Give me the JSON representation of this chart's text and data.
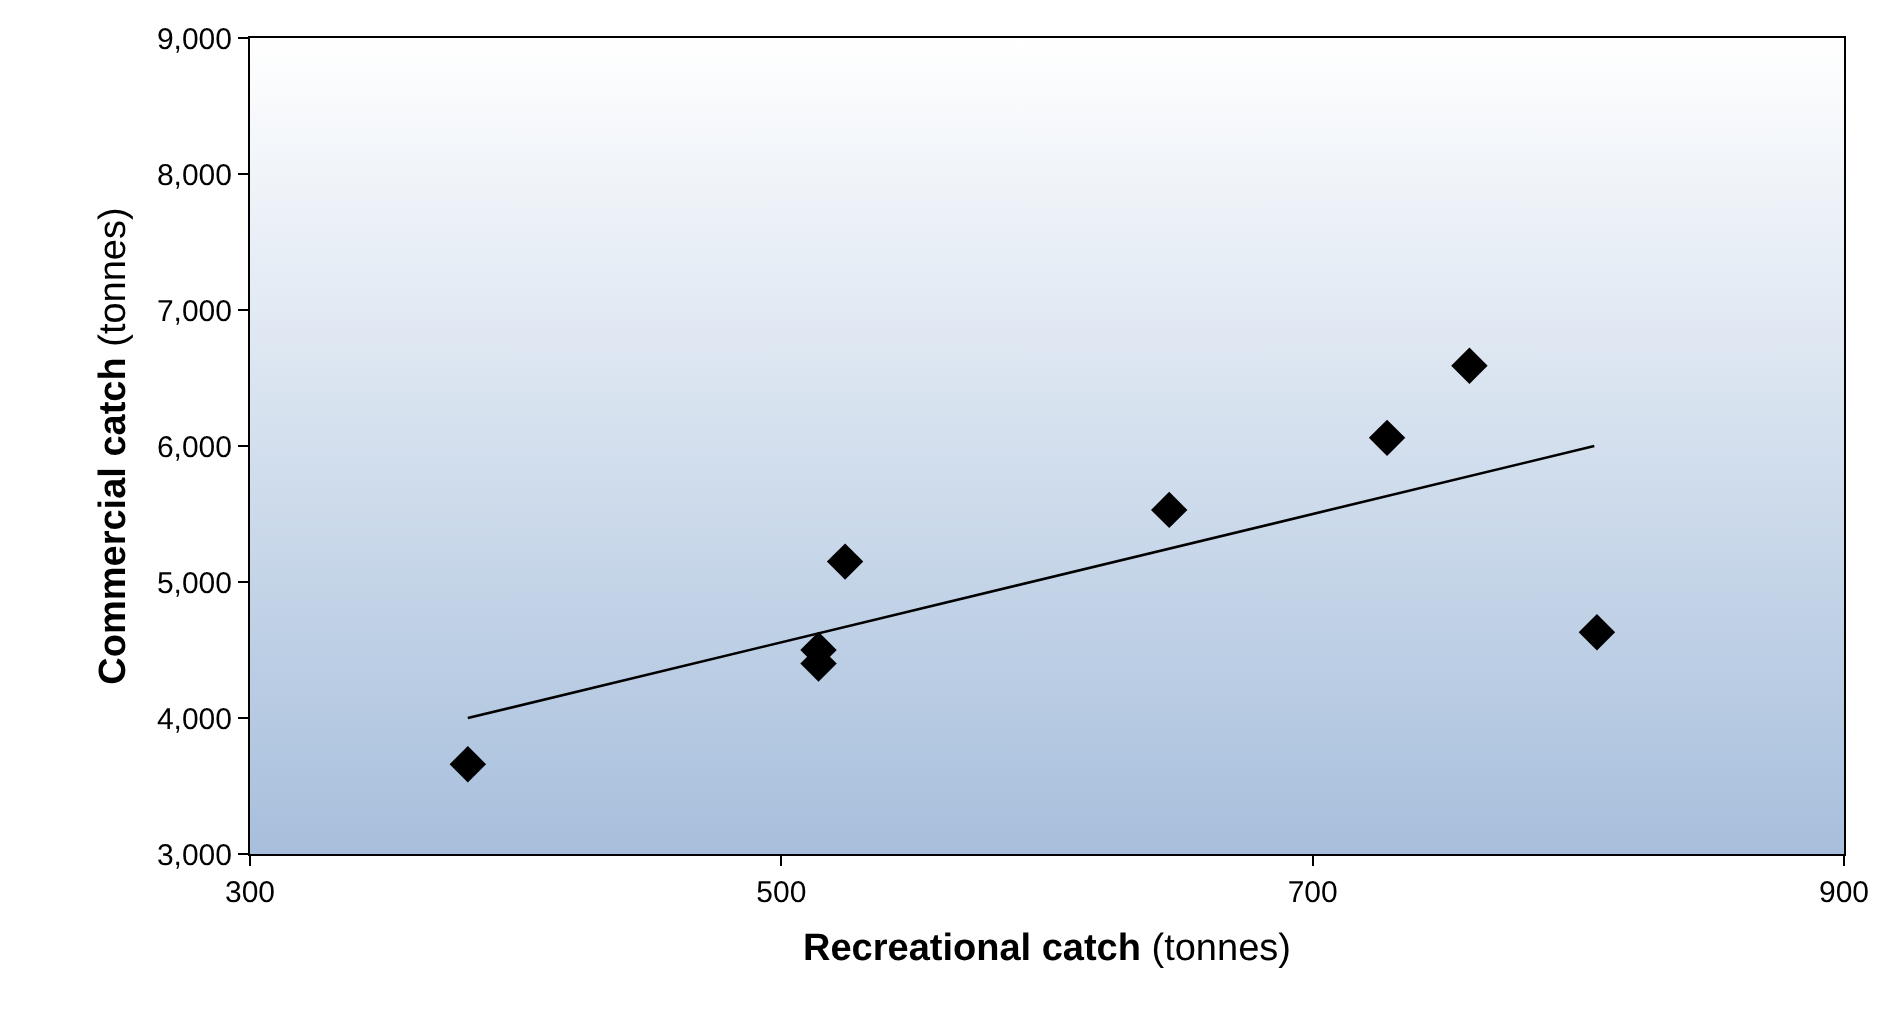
{
  "chart_data": {
    "type": "scatter",
    "xlabel": "Recreational catch (tonnes)",
    "ylabel": "Commercial catch (tonnes)",
    "xlim": [
      300,
      900
    ],
    "xticks": [
      300,
      500,
      700,
      900
    ],
    "ylim": [
      3000,
      9000
    ],
    "yticks": [
      {
        "value": 3000,
        "label": "3,000"
      },
      {
        "value": 4000,
        "label": "4,000"
      },
      {
        "value": 5000,
        "label": "5,000"
      },
      {
        "value": 6000,
        "label": "6,000"
      },
      {
        "value": 7000,
        "label": "7,000"
      },
      {
        "value": 8000,
        "label": "8,000"
      },
      {
        "value": 9000,
        "label": "9,000"
      }
    ],
    "grid": false,
    "marker": "diamond",
    "series": [
      {
        "color": "#000000",
        "x": [
          382,
          514,
          514,
          524,
          646,
          728,
          759,
          807
        ],
        "values": [
          3660,
          4400,
          4500,
          5150,
          5530,
          6060,
          6590,
          4630
        ]
      },
      {
        "type": "line",
        "color": "#000000",
        "marker": "none",
        "line_style": "solid",
        "x": [
          382,
          806
        ],
        "values": [
          4000,
          6000
        ]
      }
    ]
  }
}
